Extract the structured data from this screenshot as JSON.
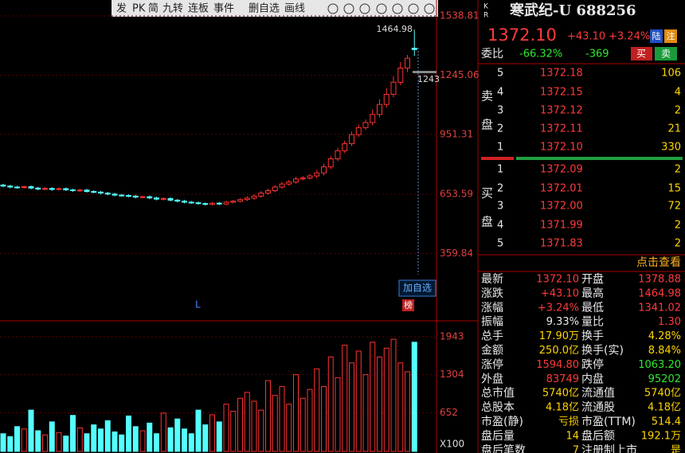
{
  "toolbar": [
    "发",
    "PK",
    "简",
    "九转",
    "连板",
    "事件",
    "删自选",
    "画线"
  ],
  "kline": {
    "open": [
      700,
      695,
      690,
      688,
      692,
      685,
      680,
      683,
      678,
      682,
      676,
      672,
      675,
      668,
      665,
      660,
      655,
      650,
      648,
      645,
      640,
      642,
      636,
      630,
      633,
      625,
      620,
      615,
      612,
      608,
      604,
      610,
      606,
      615,
      620,
      628,
      635,
      645,
      660,
      672,
      690,
      705,
      715,
      730,
      735,
      745,
      760,
      790,
      830,
      870,
      905,
      950,
      985,
      1010,
      1050,
      1100,
      1150,
      1210,
      1280,
      1378.88
    ],
    "close": [
      695,
      690,
      688,
      692,
      685,
      680,
      683,
      678,
      682,
      676,
      672,
      675,
      668,
      665,
      660,
      655,
      650,
      648,
      645,
      640,
      642,
      636,
      630,
      633,
      625,
      620,
      615,
      612,
      608,
      604,
      610,
      606,
      615,
      620,
      628,
      635,
      645,
      660,
      672,
      690,
      705,
      715,
      730,
      735,
      745,
      760,
      790,
      830,
      870,
      905,
      950,
      985,
      1010,
      1050,
      1100,
      1150,
      1210,
      1280,
      1329,
      1372.1
    ],
    "high": [
      706,
      701,
      696,
      698,
      698,
      691,
      689,
      689,
      688,
      688,
      682,
      681,
      681,
      674,
      671,
      666,
      661,
      656,
      654,
      651,
      648,
      648,
      642,
      639,
      639,
      631,
      626,
      621,
      618,
      614,
      616,
      616,
      621,
      626,
      634,
      645,
      655,
      670,
      682,
      700,
      715,
      725,
      740,
      745,
      755,
      775,
      805,
      845,
      885,
      920,
      965,
      1000,
      1025,
      1075,
      1125,
      1180,
      1240,
      1310,
      1345,
      1464.98
    ],
    "low": [
      689,
      684,
      682,
      682,
      679,
      674,
      674,
      672,
      672,
      670,
      666,
      666,
      662,
      659,
      654,
      649,
      644,
      642,
      639,
      634,
      634,
      630,
      624,
      624,
      619,
      614,
      609,
      606,
      602,
      598,
      598,
      600,
      600,
      609,
      614,
      620,
      627,
      637,
      652,
      664,
      682,
      697,
      707,
      722,
      727,
      733,
      748,
      778,
      818,
      858,
      893,
      938,
      973,
      995,
      1035,
      1085,
      1135,
      1195,
      1260,
      1341.02
    ],
    "ylim": [
      46,
      1618
    ],
    "yticks": [
      359.84,
      653.59,
      951.31,
      1245.06,
      1538.81
    ],
    "high_label": 1464.98,
    "price_tag": "1243",
    "add_button": "加自选",
    "rank_badge": "榜",
    "marker": "L"
  },
  "volume": {
    "values": [
      300,
      250,
      420,
      380,
      700,
      350,
      280,
      500,
      320,
      260,
      610,
      400,
      300,
      450,
      380,
      520,
      330,
      280,
      600,
      420,
      350,
      480,
      300,
      650,
      400,
      550,
      380,
      300,
      700,
      450,
      620,
      500,
      800,
      680,
      900,
      1000,
      850,
      700,
      1200,
      950,
      1100,
      800,
      1300,
      900,
      1050,
      1400,
      1100,
      1600,
      1250,
      1800,
      1500,
      1700,
      1300,
      1850,
      1600,
      1750,
      1900,
      1500,
      1350,
      1850
    ],
    "ylim": [
      0,
      2185
    ],
    "yticks": [
      652,
      1304,
      1943
    ],
    "unit": "X100"
  },
  "quote": {
    "kr": [
      "K",
      "R"
    ],
    "title": "寒武纪-U 688256",
    "price": "1372.10",
    "change": "+43.10",
    "pct": "+3.24%",
    "badges": [
      "陆",
      "注"
    ],
    "ratio_label": "委比",
    "ratio_pct": "-66.32%",
    "ratio_diff": "-369",
    "buy": "买",
    "sell": "卖",
    "sell_label": [
      "卖",
      "盘"
    ],
    "buy_label": [
      "买",
      "盘"
    ],
    "asks": [
      [
        "5",
        "1372.18",
        "106"
      ],
      [
        "4",
        "1372.15",
        "4"
      ],
      [
        "3",
        "1372.12",
        "2"
      ],
      [
        "2",
        "1372.11",
        "21"
      ],
      [
        "1",
        "1372.10",
        "330"
      ]
    ],
    "bids": [
      [
        "1",
        "1372.09",
        "2"
      ],
      [
        "2",
        "1372.01",
        "15"
      ],
      [
        "3",
        "1372.00",
        "72"
      ],
      [
        "4",
        "1371.99",
        "2"
      ],
      [
        "5",
        "1371.83",
        "2"
      ]
    ],
    "more": "点击查看",
    "stats": [
      [
        "最新",
        "1372.10",
        "开盘",
        "1378.88"
      ],
      [
        "涨跌",
        "+43.10",
        "最高",
        "1464.98"
      ],
      [
        "涨幅",
        "+3.24%",
        "最低",
        "1341.02"
      ],
      [
        "振幅",
        "9.33%",
        "量比",
        "1.30"
      ],
      [
        "总手",
        "17.90万",
        "换手",
        "4.28%"
      ],
      [
        "金额",
        "250.0亿",
        "换手(实)",
        "8.84%"
      ],
      [
        "涨停",
        "1594.80",
        "跌停",
        "1063.20"
      ],
      [
        "外盘",
        "83749",
        "内盘",
        "95202"
      ],
      [
        "总市值",
        "5740亿",
        "流通值",
        "5740亿"
      ],
      [
        "总股本",
        "4.18亿",
        "流通股",
        "4.18亿"
      ],
      [
        "市盈(静)",
        "亏损",
        "市盈(TTM)",
        "514.4"
      ],
      [
        "盘后量",
        "14",
        "盘后额",
        "192.1万"
      ],
      [
        "盘后笔数",
        "7",
        "注册制上市",
        "是"
      ]
    ]
  }
}
